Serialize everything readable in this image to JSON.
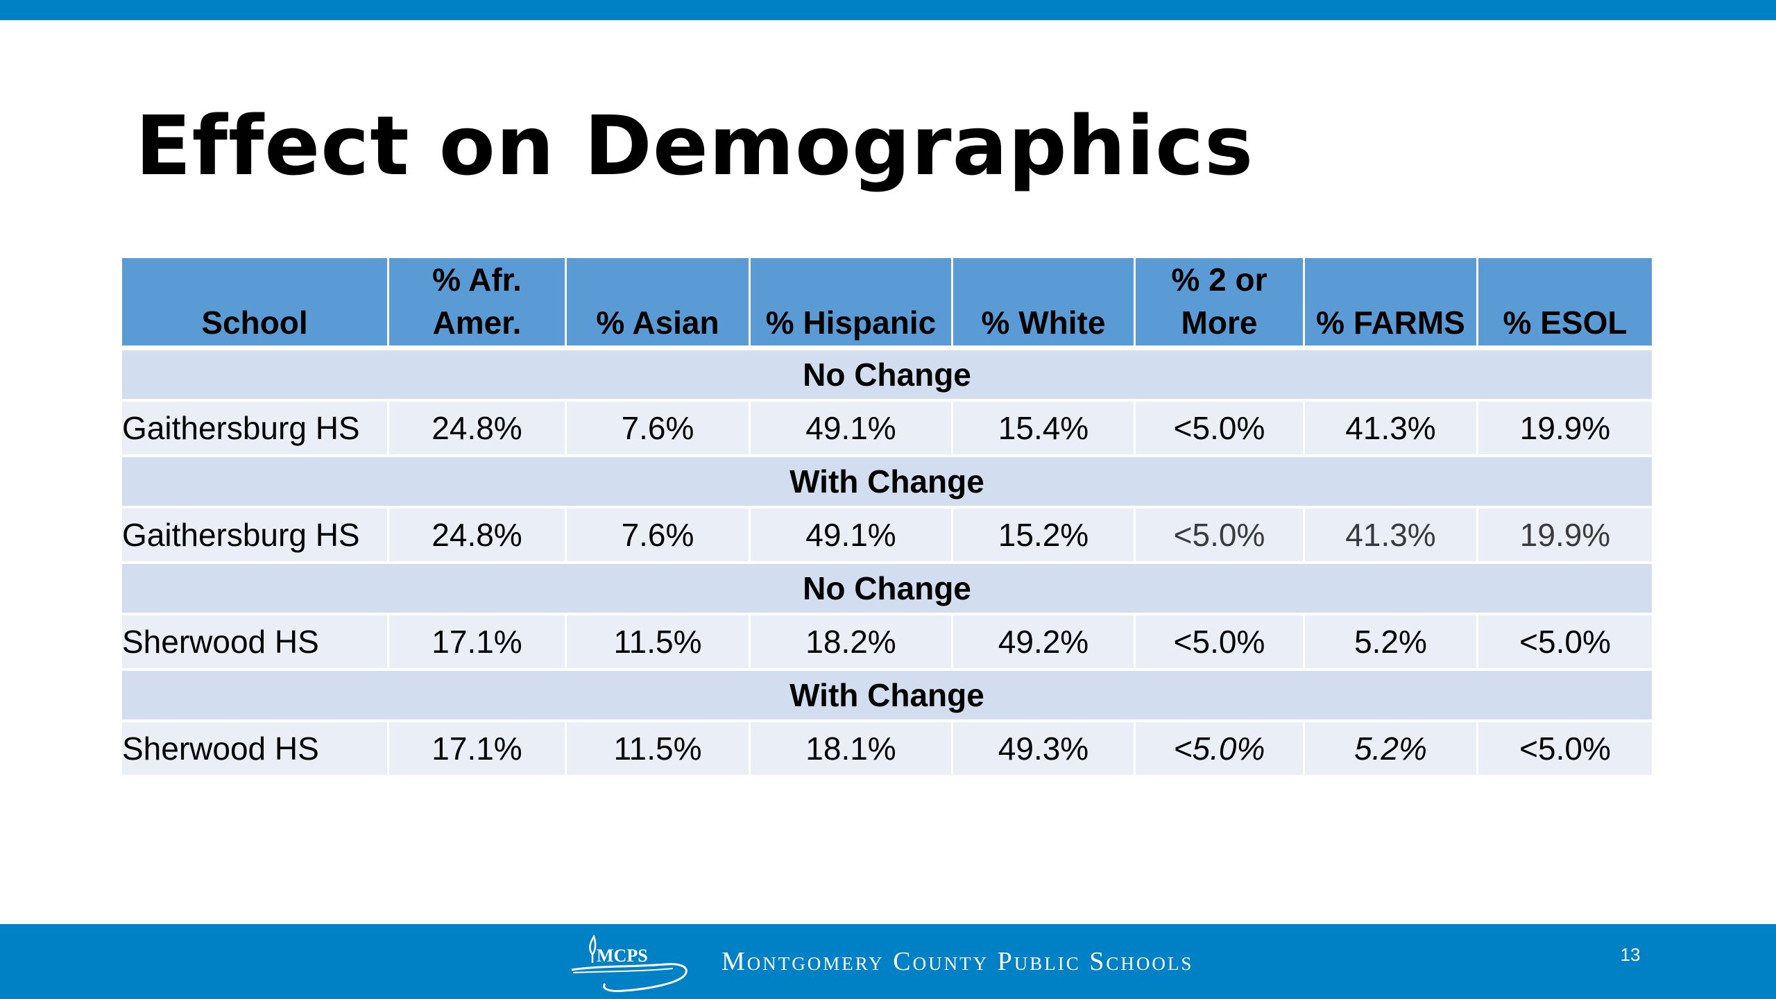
{
  "slide": {
    "title": "Effect on Demographics",
    "page_number": "13"
  },
  "footer": {
    "org_name": "Montgomery County Public Schools",
    "logo_text": "MCPS"
  },
  "colors": {
    "top_bar": "#0081c6",
    "footer_bar": "#0081c6",
    "header_cell": "#5b9bd5",
    "section_row": "#d2deef",
    "data_row": "#e9eef7"
  },
  "table": {
    "headers": {
      "school": "School",
      "afr_amer_1": "% Afr.",
      "afr_amer_2": "Amer.",
      "asian": "% Asian",
      "hispanic": "% Hispanic",
      "white": "% White",
      "two_more_1": "% 2 or",
      "two_more_2": "More",
      "farms": "% FARMS",
      "esol": "% ESOL"
    },
    "sections": [
      {
        "label": "No Change",
        "row": [
          "Gaithersburg HS",
          "24.8%",
          "7.6%",
          "49.1%",
          "15.4%",
          "<5.0%",
          "41.3%",
          "19.9%"
        ]
      },
      {
        "label": "With Change",
        "row": [
          "Gaithersburg HS",
          "24.8%",
          "7.6%",
          "49.1%",
          "15.2%",
          "<5.0%",
          "41.3%",
          "19.9%"
        ]
      },
      {
        "label": "No Change",
        "row": [
          "Sherwood HS",
          "17.1%",
          "11.5%",
          "18.2%",
          "49.2%",
          "<5.0%",
          "5.2%",
          "<5.0%"
        ]
      },
      {
        "label": "With Change",
        "row": [
          "Sherwood HS",
          "17.1%",
          "11.5%",
          "18.1%",
          "49.3%",
          "<5.0%",
          "5.2%",
          "<5.0%"
        ]
      }
    ]
  }
}
